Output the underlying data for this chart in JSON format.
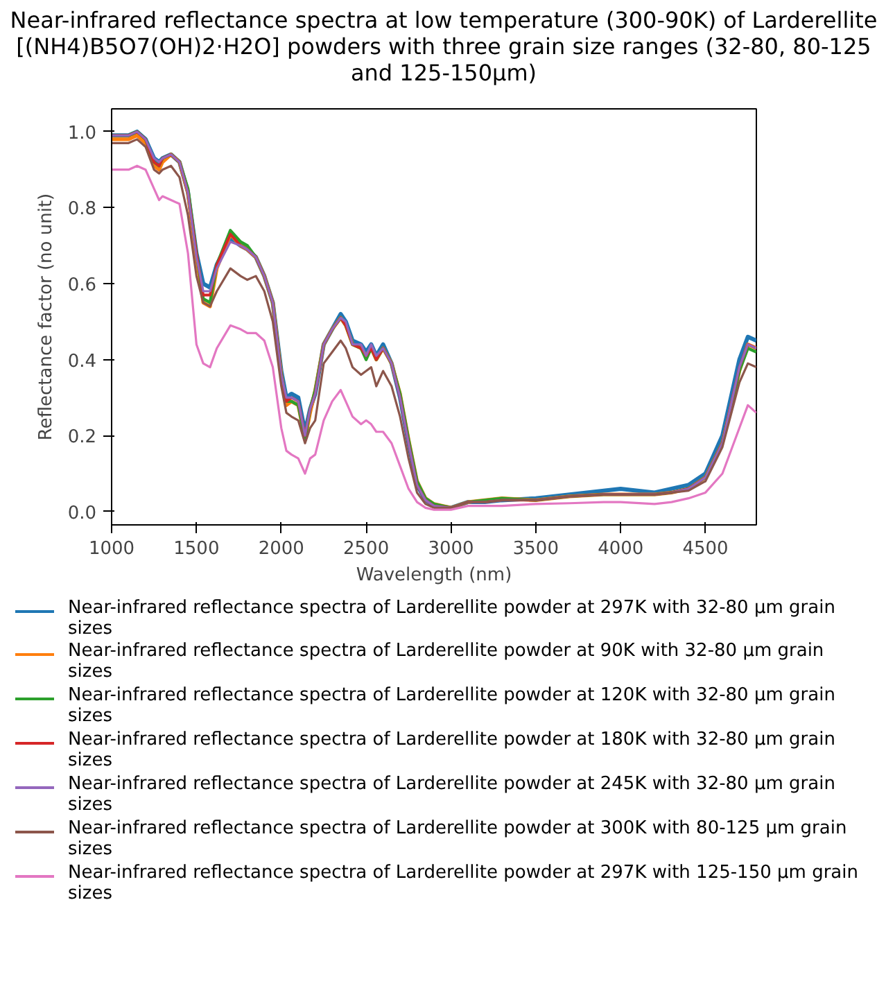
{
  "chart_data": {
    "type": "line",
    "title": "Near-infrared reflectance spectra at low temperature (300-90K) of Larderellite [(NH4)B5O7(OH)2·H2O] powders with three grain size ranges (32-80, 80-125 and 125-150µm)",
    "xlabel": "Wavelength (nm)",
    "ylabel": "Reflectance factor (no unit)",
    "x": [
      1000,
      1100,
      1150,
      1200,
      1250,
      1280,
      1300,
      1350,
      1400,
      1450,
      1500,
      1540,
      1580,
      1620,
      1700,
      1760,
      1800,
      1850,
      1900,
      1950,
      2000,
      2030,
      2060,
      2100,
      2140,
      2170,
      2200,
      2250,
      2300,
      2350,
      2380,
      2420,
      2470,
      2500,
      2530,
      2560,
      2600,
      2650,
      2700,
      2750,
      2800,
      2850,
      2900,
      3000,
      3100,
      3200,
      3300,
      3500,
      3700,
      3900,
      4000,
      4200,
      4300,
      4400,
      4500,
      4600,
      4700,
      4750,
      4800
    ],
    "series": [
      {
        "name": "Near-infrared reflectance spectra of Larderellite powder at 297K with 32-80 µm grain sizes",
        "color": "#1f77b4",
        "values": [
          0.99,
          0.99,
          1.0,
          0.98,
          0.93,
          0.92,
          0.93,
          0.94,
          0.92,
          0.84,
          0.68,
          0.6,
          0.59,
          0.65,
          0.72,
          0.7,
          0.69,
          0.67,
          0.62,
          0.55,
          0.37,
          0.3,
          0.31,
          0.3,
          0.21,
          0.27,
          0.31,
          0.44,
          0.48,
          0.52,
          0.5,
          0.45,
          0.44,
          0.42,
          0.44,
          0.41,
          0.44,
          0.39,
          0.3,
          0.18,
          0.07,
          0.03,
          0.015,
          0.01,
          0.025,
          0.025,
          0.03,
          0.035,
          0.045,
          0.055,
          0.06,
          0.05,
          0.06,
          0.07,
          0.1,
          0.2,
          0.4,
          0.46,
          0.45
        ]
      },
      {
        "name": "Near-infrared reflectance spectra of Larderellite powder at 90K with 32-80 µm grain sizes",
        "color": "#ff7f0e",
        "values": [
          0.98,
          0.98,
          0.99,
          0.97,
          0.91,
          0.9,
          0.92,
          0.94,
          0.92,
          0.84,
          0.67,
          0.55,
          0.54,
          0.64,
          0.73,
          0.7,
          0.69,
          0.67,
          0.62,
          0.55,
          0.36,
          0.28,
          0.29,
          0.28,
          0.19,
          0.26,
          0.32,
          0.44,
          0.48,
          0.51,
          0.49,
          0.44,
          0.43,
          0.41,
          0.43,
          0.4,
          0.43,
          0.39,
          0.31,
          0.19,
          0.08,
          0.035,
          0.02,
          0.01,
          0.025,
          0.03,
          0.035,
          0.03,
          0.04,
          0.045,
          0.045,
          0.045,
          0.05,
          0.06,
          0.09,
          0.18,
          0.37,
          0.44,
          0.43
        ]
      },
      {
        "name": "Near-infrared reflectance spectra of Larderellite powder at 120K with 32-80 µm grain sizes",
        "color": "#2ca02c",
        "values": [
          0.99,
          0.99,
          1.0,
          0.98,
          0.92,
          0.91,
          0.93,
          0.94,
          0.92,
          0.85,
          0.68,
          0.56,
          0.55,
          0.65,
          0.74,
          0.71,
          0.7,
          0.67,
          0.62,
          0.55,
          0.36,
          0.29,
          0.29,
          0.28,
          0.19,
          0.27,
          0.32,
          0.44,
          0.48,
          0.51,
          0.49,
          0.44,
          0.43,
          0.4,
          0.43,
          0.4,
          0.43,
          0.39,
          0.31,
          0.19,
          0.08,
          0.035,
          0.02,
          0.01,
          0.025,
          0.03,
          0.035,
          0.03,
          0.04,
          0.045,
          0.045,
          0.045,
          0.05,
          0.06,
          0.09,
          0.18,
          0.37,
          0.43,
          0.42
        ]
      },
      {
        "name": "Near-infrared reflectance spectra of Larderellite powder at 180K with 32-80 µm grain sizes",
        "color": "#d62728",
        "values": [
          0.99,
          0.99,
          1.0,
          0.98,
          0.92,
          0.91,
          0.93,
          0.94,
          0.92,
          0.84,
          0.68,
          0.57,
          0.57,
          0.65,
          0.73,
          0.7,
          0.69,
          0.67,
          0.62,
          0.55,
          0.36,
          0.29,
          0.3,
          0.29,
          0.2,
          0.27,
          0.31,
          0.44,
          0.48,
          0.51,
          0.49,
          0.44,
          0.43,
          0.41,
          0.43,
          0.4,
          0.43,
          0.39,
          0.3,
          0.18,
          0.07,
          0.03,
          0.015,
          0.01,
          0.025,
          0.025,
          0.03,
          0.03,
          0.04,
          0.045,
          0.045,
          0.045,
          0.05,
          0.06,
          0.09,
          0.18,
          0.38,
          0.44,
          0.43
        ]
      },
      {
        "name": "Near-infrared reflectance spectra of Larderellite powder at 245K with 32-80 µm grain sizes",
        "color": "#9467bd",
        "values": [
          0.99,
          0.99,
          1.0,
          0.98,
          0.93,
          0.92,
          0.93,
          0.94,
          0.92,
          0.84,
          0.67,
          0.58,
          0.58,
          0.64,
          0.71,
          0.7,
          0.69,
          0.67,
          0.62,
          0.55,
          0.36,
          0.3,
          0.3,
          0.29,
          0.2,
          0.27,
          0.31,
          0.44,
          0.48,
          0.51,
          0.5,
          0.44,
          0.44,
          0.41,
          0.44,
          0.41,
          0.43,
          0.39,
          0.3,
          0.18,
          0.07,
          0.03,
          0.015,
          0.01,
          0.025,
          0.025,
          0.03,
          0.03,
          0.04,
          0.045,
          0.045,
          0.045,
          0.05,
          0.06,
          0.09,
          0.18,
          0.38,
          0.44,
          0.43
        ]
      },
      {
        "name": "Near-infrared reflectance spectra of Larderellite powder at 300K with 80-125 µm grain sizes",
        "color": "#8c564b",
        "values": [
          0.97,
          0.97,
          0.98,
          0.96,
          0.9,
          0.89,
          0.9,
          0.91,
          0.88,
          0.78,
          0.62,
          0.55,
          0.54,
          0.58,
          0.64,
          0.62,
          0.61,
          0.62,
          0.58,
          0.5,
          0.33,
          0.26,
          0.25,
          0.24,
          0.18,
          0.22,
          0.24,
          0.39,
          0.42,
          0.45,
          0.43,
          0.38,
          0.36,
          0.37,
          0.38,
          0.33,
          0.37,
          0.33,
          0.25,
          0.14,
          0.05,
          0.02,
          0.01,
          0.01,
          0.025,
          0.025,
          0.03,
          0.03,
          0.04,
          0.045,
          0.045,
          0.045,
          0.05,
          0.055,
          0.08,
          0.17,
          0.34,
          0.39,
          0.38
        ]
      },
      {
        "name": "Near-infrared reflectance spectra of Larderellite powder at 297K with 125-150 µm grain sizes",
        "color": "#e377c2",
        "values": [
          0.9,
          0.9,
          0.91,
          0.9,
          0.85,
          0.82,
          0.83,
          0.82,
          0.81,
          0.68,
          0.44,
          0.39,
          0.38,
          0.43,
          0.49,
          0.48,
          0.47,
          0.47,
          0.45,
          0.38,
          0.22,
          0.16,
          0.15,
          0.14,
          0.1,
          0.14,
          0.15,
          0.24,
          0.29,
          0.32,
          0.29,
          0.25,
          0.23,
          0.24,
          0.23,
          0.21,
          0.21,
          0.18,
          0.12,
          0.06,
          0.025,
          0.01,
          0.005,
          0.005,
          0.015,
          0.015,
          0.015,
          0.02,
          0.022,
          0.025,
          0.025,
          0.02,
          0.025,
          0.035,
          0.05,
          0.1,
          0.22,
          0.28,
          0.26
        ]
      }
    ],
    "xlim": [
      1000,
      4800
    ],
    "ylim": [
      -0.035,
      1.06
    ],
    "xticks": [
      1000,
      1500,
      2000,
      2500,
      3000,
      3500,
      4000,
      4500
    ],
    "yticks": [
      {
        "value": 0,
        "label": "0.0"
      },
      {
        "value": 0.2,
        "label": "0.2"
      },
      {
        "value": 0.4,
        "label": "0.4"
      },
      {
        "value": 0.6,
        "label": "0.6"
      },
      {
        "value": 0.8,
        "label": "0.8"
      },
      {
        "value": 1.0,
        "label": "1.0"
      }
    ],
    "grid": false,
    "legend": "bottom",
    "marker": "none",
    "line_style": "solid"
  }
}
